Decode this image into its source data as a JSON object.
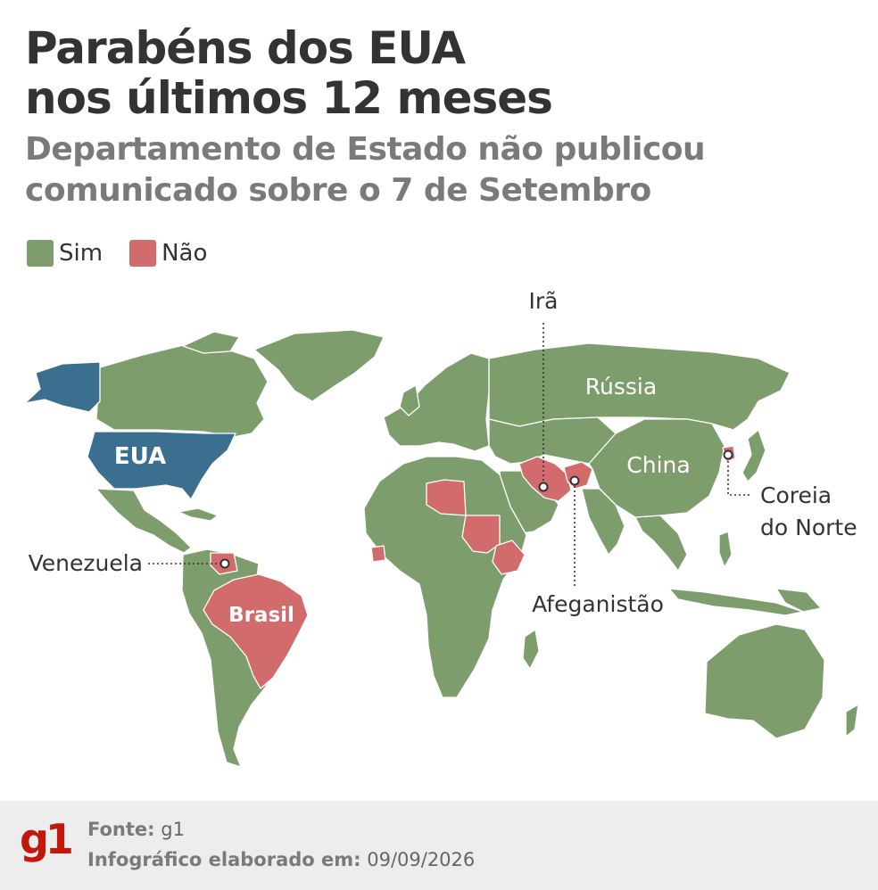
{
  "title": {
    "line1": "Parabéns dos EUA",
    "line2": "nos últimos 12 meses"
  },
  "subtitle": {
    "line1": "Departamento de Estado não publicou",
    "line2": "comunicado sobre o 7 de Setembro"
  },
  "legend": [
    {
      "label": "Sim",
      "color": "#7d9e6c"
    },
    {
      "label": "Não",
      "color": "#d26b6b"
    }
  ],
  "map": {
    "colors": {
      "sim": "#7d9e6c",
      "nao": "#d26b6b",
      "usa": "#3b6f8f",
      "border": "#ffffff"
    },
    "labels": {
      "eua": "EUA",
      "brasil": "Brasil",
      "russia": "Rússia",
      "china": "China",
      "ira": "Irã",
      "afeganistao": "Afeganistão",
      "coreia_line1": "Coreia",
      "coreia_line2": "do Norte",
      "venezuela": "Venezuela"
    }
  },
  "footer": {
    "logo": "g1",
    "fonte_label": "Fonte:",
    "fonte_value": "g1",
    "infografico_label": "Infográfico elaborado em:",
    "infografico_value": "09/09/2026",
    "logo_color": "#c4170c"
  }
}
